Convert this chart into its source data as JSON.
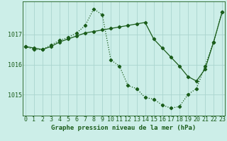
{
  "xlabel": "Graphe pression niveau de la mer (hPa)",
  "background_color": "#cceee8",
  "grid_color": "#aad4ce",
  "line_color": "#1a5c1a",
  "x_ticks": [
    0,
    1,
    2,
    3,
    4,
    5,
    6,
    7,
    8,
    9,
    10,
    11,
    12,
    13,
    14,
    15,
    16,
    17,
    18,
    19,
    20,
    21,
    22,
    23
  ],
  "y_ticks": [
    1015,
    1016,
    1017
  ],
  "ylim": [
    1014.3,
    1018.1
  ],
  "xlim": [
    -0.3,
    23.3
  ],
  "series1_y": [
    1016.6,
    1016.55,
    1016.5,
    1016.6,
    1016.75,
    1016.85,
    1016.95,
    1017.05,
    1017.1,
    1017.15,
    1017.2,
    1017.25,
    1017.3,
    1017.35,
    1017.4,
    1016.85,
    1016.55,
    1016.25,
    1015.95,
    1015.6,
    1015.45,
    1015.85,
    1016.75,
    1017.75
  ],
  "series2_y": [
    1016.6,
    1016.5,
    1016.5,
    1016.65,
    1016.8,
    1016.9,
    1017.05,
    1017.3,
    1017.85,
    1017.65,
    1016.15,
    1015.95,
    1015.3,
    1015.2,
    1014.9,
    1014.85,
    1014.65,
    1014.55,
    1014.6,
    1015.0,
    1015.2,
    1015.95,
    1016.75,
    1017.75
  ],
  "marker": "D",
  "marker_size": 2.2,
  "line_width": 0.9,
  "xlabel_fontsize": 6.5,
  "tick_fontsize": 6,
  "fig_width": 3.2,
  "fig_height": 2.0,
  "dpi": 100
}
